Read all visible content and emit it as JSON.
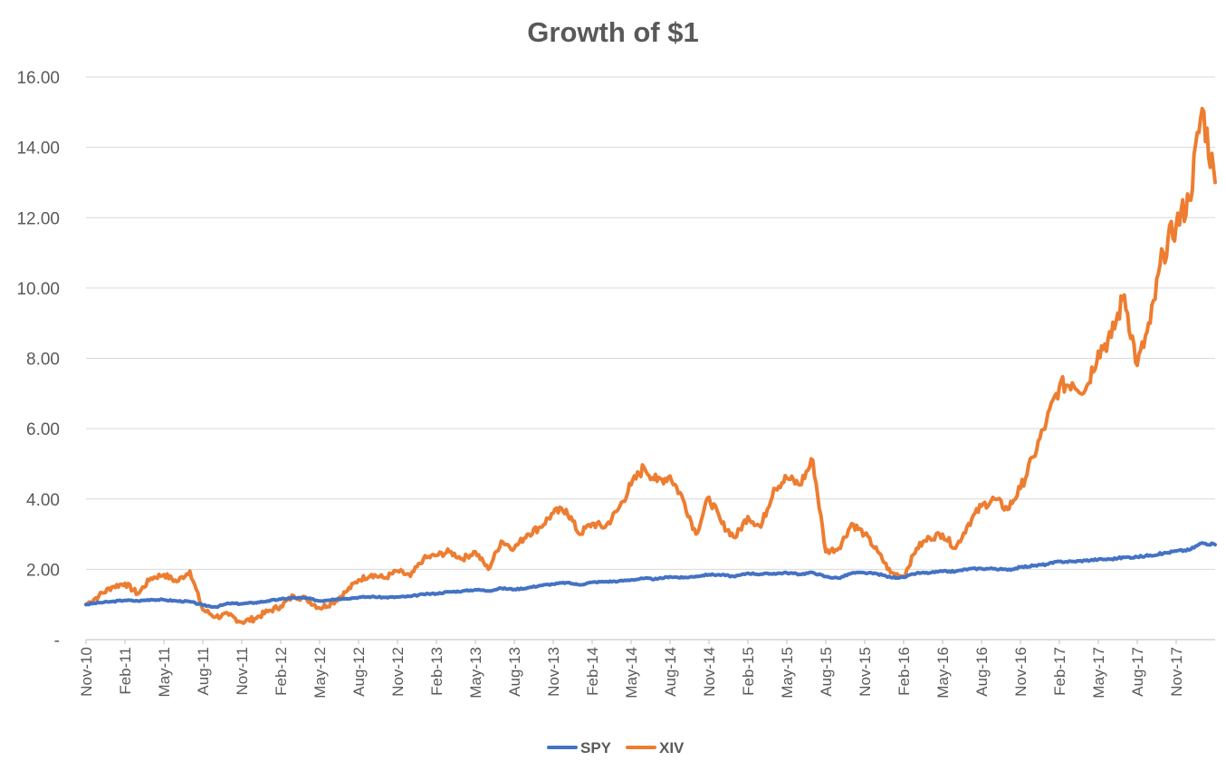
{
  "chart_data": {
    "type": "line",
    "title": "Growth of $1",
    "xlabel": "",
    "ylabel": "",
    "ylim": [
      0,
      16
    ],
    "y_ticks": [
      "-",
      "2.00",
      "4.00",
      "6.00",
      "8.00",
      "10.00",
      "12.00",
      "14.00",
      "16.00"
    ],
    "x_ticks": [
      "Nov-10",
      "Feb-11",
      "May-11",
      "Aug-11",
      "Nov-11",
      "Feb-12",
      "May-12",
      "Aug-12",
      "Nov-12",
      "Feb-13",
      "May-13",
      "Aug-13",
      "Nov-13",
      "Feb-14",
      "May-14",
      "Aug-14",
      "Nov-14",
      "Feb-15",
      "May-15",
      "Aug-15",
      "Nov-15",
      "Feb-16",
      "May-16",
      "Aug-16",
      "Nov-16",
      "Feb-17",
      "May-17",
      "Aug-17",
      "Nov-17"
    ],
    "x_range": [
      "2010-11",
      "2018-02"
    ],
    "grid": true,
    "legend_position": "bottom",
    "series": [
      {
        "name": "SPY",
        "color": "#4472c4",
        "points": [
          [
            "2010-11",
            1.0
          ],
          [
            "2010-12",
            1.05
          ],
          [
            "2011-01",
            1.08
          ],
          [
            "2011-02",
            1.12
          ],
          [
            "2011-03",
            1.1
          ],
          [
            "2011-04",
            1.14
          ],
          [
            "2011-05",
            1.13
          ],
          [
            "2011-06",
            1.1
          ],
          [
            "2011-07",
            1.08
          ],
          [
            "2011-08",
            0.98
          ],
          [
            "2011-09",
            0.93
          ],
          [
            "2011-10",
            1.03
          ],
          [
            "2011-11",
            1.02
          ],
          [
            "2011-12",
            1.05
          ],
          [
            "2012-01",
            1.1
          ],
          [
            "2012-02",
            1.15
          ],
          [
            "2012-03",
            1.19
          ],
          [
            "2012-04",
            1.18
          ],
          [
            "2012-05",
            1.1
          ],
          [
            "2012-06",
            1.15
          ],
          [
            "2012-07",
            1.17
          ],
          [
            "2012-08",
            1.2
          ],
          [
            "2012-09",
            1.22
          ],
          [
            "2012-10",
            1.2
          ],
          [
            "2012-11",
            1.21
          ],
          [
            "2012-12",
            1.23
          ],
          [
            "2013-01",
            1.29
          ],
          [
            "2013-02",
            1.31
          ],
          [
            "2013-03",
            1.36
          ],
          [
            "2013-04",
            1.38
          ],
          [
            "2013-05",
            1.42
          ],
          [
            "2013-06",
            1.39
          ],
          [
            "2013-07",
            1.46
          ],
          [
            "2013-08",
            1.43
          ],
          [
            "2013-09",
            1.47
          ],
          [
            "2013-10",
            1.54
          ],
          [
            "2013-11",
            1.58
          ],
          [
            "2013-12",
            1.62
          ],
          [
            "2014-01",
            1.56
          ],
          [
            "2014-02",
            1.63
          ],
          [
            "2014-03",
            1.65
          ],
          [
            "2014-04",
            1.66
          ],
          [
            "2014-05",
            1.7
          ],
          [
            "2014-06",
            1.74
          ],
          [
            "2014-07",
            1.72
          ],
          [
            "2014-08",
            1.79
          ],
          [
            "2014-09",
            1.76
          ],
          [
            "2014-10",
            1.8
          ],
          [
            "2014-11",
            1.85
          ],
          [
            "2014-12",
            1.84
          ],
          [
            "2015-01",
            1.79
          ],
          [
            "2015-02",
            1.89
          ],
          [
            "2015-03",
            1.86
          ],
          [
            "2015-04",
            1.88
          ],
          [
            "2015-05",
            1.9
          ],
          [
            "2015-06",
            1.86
          ],
          [
            "2015-07",
            1.91
          ],
          [
            "2015-08",
            1.79
          ],
          [
            "2015-09",
            1.75
          ],
          [
            "2015-10",
            1.89
          ],
          [
            "2015-11",
            1.9
          ],
          [
            "2015-12",
            1.87
          ],
          [
            "2016-01",
            1.77
          ],
          [
            "2016-02",
            1.77
          ],
          [
            "2016-03",
            1.89
          ],
          [
            "2016-04",
            1.9
          ],
          [
            "2016-05",
            1.94
          ],
          [
            "2016-06",
            1.94
          ],
          [
            "2016-07",
            2.01
          ],
          [
            "2016-08",
            2.02
          ],
          [
            "2016-09",
            2.02
          ],
          [
            "2016-10",
            1.98
          ],
          [
            "2016-11",
            2.06
          ],
          [
            "2016-12",
            2.1
          ],
          [
            "2017-01",
            2.14
          ],
          [
            "2017-02",
            2.22
          ],
          [
            "2017-03",
            2.22
          ],
          [
            "2017-04",
            2.25
          ],
          [
            "2017-05",
            2.28
          ],
          [
            "2017-06",
            2.29
          ],
          [
            "2017-07",
            2.34
          ],
          [
            "2017-08",
            2.35
          ],
          [
            "2017-09",
            2.4
          ],
          [
            "2017-10",
            2.45
          ],
          [
            "2017-11",
            2.52
          ],
          [
            "2017-12",
            2.55
          ],
          [
            "2018-01",
            2.75
          ],
          [
            "2018-02",
            2.7
          ]
        ]
      },
      {
        "name": "XIV",
        "color": "#ed7d31",
        "points": [
          [
            "2010-11",
            1.0
          ],
          [
            "2010-12",
            1.25
          ],
          [
            "2011-01",
            1.5
          ],
          [
            "2011-02",
            1.6
          ],
          [
            "2011-03",
            1.3
          ],
          [
            "2011-04",
            1.75
          ],
          [
            "2011-05",
            1.85
          ],
          [
            "2011-06",
            1.65
          ],
          [
            "2011-07",
            1.95
          ],
          [
            "2011-08",
            0.85
          ],
          [
            "2011-09",
            0.65
          ],
          [
            "2011-10",
            0.7
          ],
          [
            "2011-11",
            0.5
          ],
          [
            "2011-12",
            0.6
          ],
          [
            "2012-01",
            0.8
          ],
          [
            "2012-02",
            0.95
          ],
          [
            "2012-03",
            1.25
          ],
          [
            "2012-04",
            1.15
          ],
          [
            "2012-05",
            0.9
          ],
          [
            "2012-06",
            1.05
          ],
          [
            "2012-07",
            1.35
          ],
          [
            "2012-08",
            1.7
          ],
          [
            "2012-09",
            1.85
          ],
          [
            "2012-10",
            1.75
          ],
          [
            "2012-11",
            1.95
          ],
          [
            "2012-12",
            1.8
          ],
          [
            "2013-01",
            2.3
          ],
          [
            "2013-02",
            2.4
          ],
          [
            "2013-03",
            2.5
          ],
          [
            "2013-04",
            2.3
          ],
          [
            "2013-05",
            2.5
          ],
          [
            "2013-06",
            2.0
          ],
          [
            "2013-07",
            2.8
          ],
          [
            "2013-08",
            2.6
          ],
          [
            "2013-09",
            3.0
          ],
          [
            "2013-10",
            3.2
          ],
          [
            "2013-11",
            3.6
          ],
          [
            "2013-12",
            3.7
          ],
          [
            "2014-01",
            3.0
          ],
          [
            "2014-02",
            3.3
          ],
          [
            "2014-03",
            3.2
          ],
          [
            "2014-04",
            3.7
          ],
          [
            "2014-05",
            4.4
          ],
          [
            "2014-06",
            4.9
          ],
          [
            "2014-07",
            4.5
          ],
          [
            "2014-08",
            4.65
          ],
          [
            "2014-09",
            4.0
          ],
          [
            "2014-10",
            3.0
          ],
          [
            "2014-11",
            4.05
          ],
          [
            "2014-12",
            3.3
          ],
          [
            "2015-01",
            2.9
          ],
          [
            "2015-02",
            3.5
          ],
          [
            "2015-03",
            3.2
          ],
          [
            "2015-04",
            4.3
          ],
          [
            "2015-05",
            4.6
          ],
          [
            "2015-06",
            4.4
          ],
          [
            "2015-07",
            5.1
          ],
          [
            "2015-08",
            2.5
          ],
          [
            "2015-09",
            2.6
          ],
          [
            "2015-10",
            3.3
          ],
          [
            "2015-11",
            3.0
          ],
          [
            "2015-12",
            2.5
          ],
          [
            "2016-01",
            1.9
          ],
          [
            "2016-02",
            1.8
          ],
          [
            "2016-03",
            2.6
          ],
          [
            "2016-04",
            2.9
          ],
          [
            "2016-05",
            3.0
          ],
          [
            "2016-06",
            2.6
          ],
          [
            "2016-07",
            3.3
          ],
          [
            "2016-08",
            3.8
          ],
          [
            "2016-09",
            4.0
          ],
          [
            "2016-10",
            3.7
          ],
          [
            "2016-11",
            4.3
          ],
          [
            "2016-12",
            5.2
          ],
          [
            "2017-01",
            6.2
          ],
          [
            "2017-02",
            7.2
          ],
          [
            "2017-03",
            7.3
          ],
          [
            "2017-04",
            7.1
          ],
          [
            "2017-05",
            8.2
          ],
          [
            "2017-06",
            8.6
          ],
          [
            "2017-07",
            9.8
          ],
          [
            "2017-08",
            7.8
          ],
          [
            "2017-09",
            9.0
          ],
          [
            "2017-10",
            11.0
          ],
          [
            "2017-11",
            11.8
          ],
          [
            "2017-12",
            12.5
          ],
          [
            "2018-01",
            15.1
          ],
          [
            "2018-02",
            13.0
          ]
        ]
      }
    ]
  }
}
